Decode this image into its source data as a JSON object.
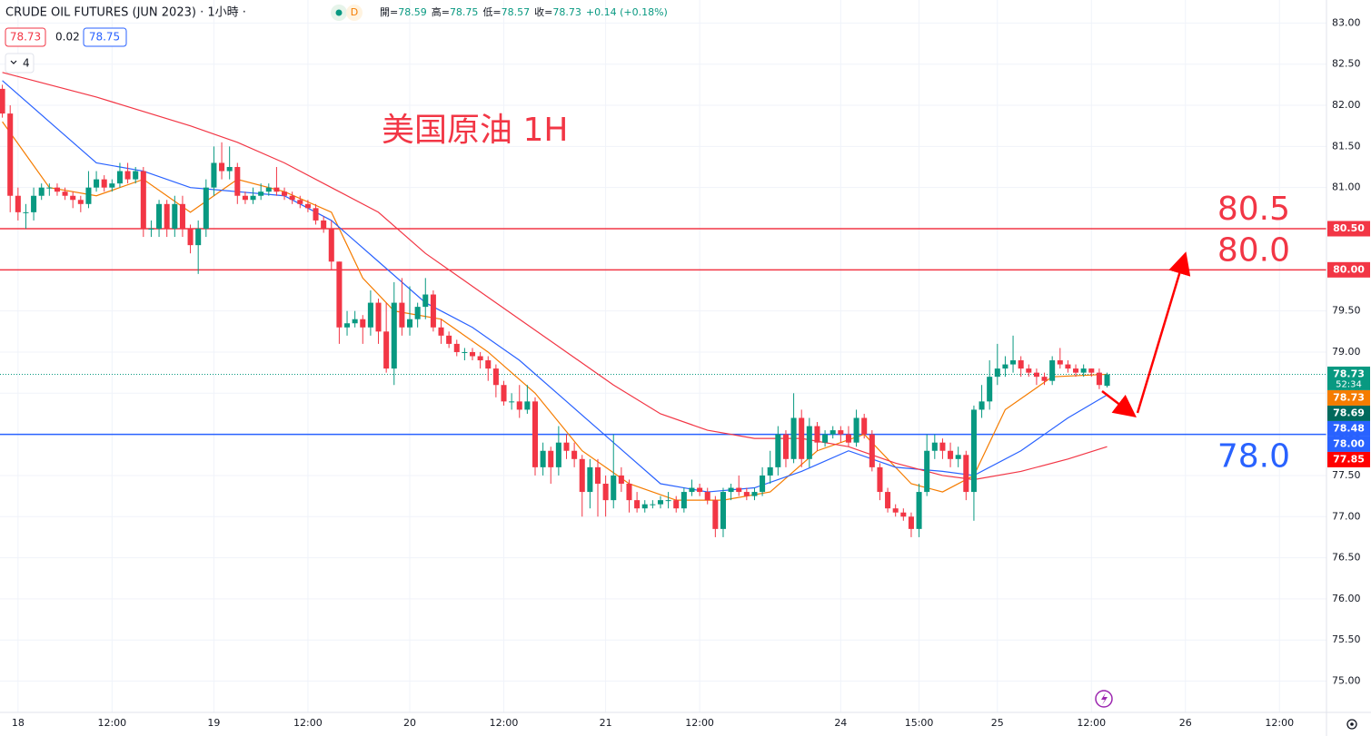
{
  "chart_data": {
    "type": "candlestick",
    "title": "CRUDE OIL FUTURES (JUN 2023) · 1小時 ·",
    "interval_badge": "D",
    "ohlc_legend": [
      {
        "label": "開=",
        "value": 78.59
      },
      {
        "label": "高=",
        "value": 78.75
      },
      {
        "label": "低=",
        "value": 78.57
      },
      {
        "label": "收=",
        "value": 78.73
      }
    ],
    "change_text": "+0.14 (+0.18%)",
    "legend_values": [
      78.73,
      0.02,
      78.75
    ],
    "indicator_count": "4",
    "annotation": "美国原油 1H",
    "up_color": "#089981",
    "down_color": "#f23645",
    "grid": true,
    "xlim": [
      -0.3,
      169
    ],
    "ylim": [
      74.62,
      83.28
    ],
    "xticks": [
      {
        "value": 2,
        "label": "18"
      },
      {
        "value": 14,
        "label": "12:00"
      },
      {
        "value": 27,
        "label": "19"
      },
      {
        "value": 39,
        "label": "12:00"
      },
      {
        "value": 52,
        "label": "20"
      },
      {
        "value": 64,
        "label": "12:00"
      },
      {
        "value": 77,
        "label": "21"
      },
      {
        "value": 89,
        "label": "12:00"
      },
      {
        "value": 107,
        "label": "24"
      },
      {
        "value": 117,
        "label": "15:00"
      },
      {
        "value": 127,
        "label": "25"
      },
      {
        "value": 139,
        "label": "12:00"
      },
      {
        "value": 151,
        "label": "26"
      },
      {
        "value": 163,
        "label": "12:00"
      }
    ],
    "yticks": [
      {
        "value": 75,
        "label": "75.00"
      },
      {
        "value": 75.5,
        "label": "75.50"
      },
      {
        "value": 76,
        "label": "76.00"
      },
      {
        "value": 76.5,
        "label": "76.50"
      },
      {
        "value": 77,
        "label": "77.00"
      },
      {
        "value": 77.5,
        "label": "77.50"
      },
      {
        "value": 78,
        "label": "78.00"
      },
      {
        "value": 78.5,
        "label": "78.50"
      },
      {
        "value": 79,
        "label": "79.00"
      },
      {
        "value": 79.5,
        "label": "79.50"
      },
      {
        "value": 80,
        "label": "80.00"
      },
      {
        "value": 80.5,
        "label": "80.50"
      },
      {
        "value": 81,
        "label": "81.00"
      },
      {
        "value": 81.5,
        "label": "81.50"
      },
      {
        "value": 82,
        "label": "82.00"
      },
      {
        "value": 82.5,
        "label": "82.50"
      },
      {
        "value": 83,
        "label": "83.00"
      }
    ],
    "x": [
      0,
      1,
      2,
      3,
      4,
      5,
      6,
      7,
      8,
      9,
      10,
      11,
      12,
      13,
      14,
      15,
      16,
      17,
      18,
      19,
      20,
      21,
      22,
      23,
      24,
      25,
      26,
      27,
      28,
      29,
      30,
      31,
      32,
      33,
      34,
      35,
      36,
      37,
      38,
      39,
      40,
      41,
      42,
      43,
      44,
      45,
      46,
      47,
      48,
      49,
      50,
      51,
      52,
      53,
      54,
      55,
      56,
      57,
      58,
      59,
      60,
      61,
      62,
      63,
      64,
      65,
      66,
      67,
      68,
      69,
      70,
      71,
      72,
      73,
      74,
      75,
      76,
      77,
      78,
      79,
      80,
      81,
      82,
      83,
      84,
      85,
      86,
      87,
      88,
      89,
      90,
      91,
      92,
      93,
      94,
      95,
      96,
      97,
      98,
      99,
      100,
      101,
      102,
      103,
      104,
      105,
      106,
      107,
      108,
      109,
      110,
      111,
      112,
      113,
      114,
      115,
      116,
      117,
      118,
      119,
      120,
      121,
      122,
      123,
      124,
      125,
      126,
      127,
      128,
      129,
      130,
      131,
      132,
      133,
      134,
      135,
      136,
      137,
      138,
      139,
      140,
      141
    ],
    "open": [
      82.2,
      81.9,
      80.9,
      80.7,
      80.7,
      80.9,
      81.0,
      81.0,
      80.95,
      80.9,
      80.85,
      80.8,
      81.0,
      81.1,
      81.0,
      81.05,
      81.2,
      81.1,
      81.2,
      80.5,
      80.5,
      80.8,
      80.5,
      80.8,
      80.5,
      80.3,
      80.5,
      81.0,
      81.3,
      81.2,
      81.25,
      80.9,
      80.85,
      80.9,
      80.95,
      81.0,
      80.95,
      80.9,
      80.85,
      80.8,
      80.75,
      80.6,
      80.5,
      80.1,
      79.3,
      79.35,
      79.4,
      79.3,
      79.6,
      79.25,
      78.8,
      79.6,
      79.3,
      79.4,
      79.55,
      79.7,
      79.3,
      79.2,
      79.1,
      79.0,
      79.0,
      78.95,
      78.9,
      78.8,
      78.6,
      78.4,
      78.4,
      78.3,
      78.4,
      77.6,
      77.8,
      77.6,
      77.9,
      77.8,
      77.7,
      77.3,
      77.6,
      77.4,
      77.2,
      77.5,
      77.4,
      77.2,
      77.1,
      77.15,
      77.15,
      77.2,
      77.2,
      77.1,
      77.3,
      77.35,
      77.3,
      77.2,
      76.85,
      77.3,
      77.35,
      77.3,
      77.25,
      77.3,
      77.5,
      77.6,
      78.0,
      77.7,
      78.2,
      77.7,
      78.1,
      77.9,
      78.0,
      78.05,
      78.0,
      77.9,
      78.2,
      78.0,
      77.6,
      77.3,
      77.1,
      77.05,
      77.0,
      76.85,
      77.3,
      77.8,
      77.9,
      77.8,
      77.7,
      77.75,
      77.3,
      78.3,
      78.4,
      78.7,
      78.8,
      78.85,
      78.9,
      78.8,
      78.75,
      78.7,
      78.65,
      78.9,
      78.85,
      78.8,
      78.75,
      78.8,
      78.75,
      78.59
    ],
    "high": [
      82.25,
      82.0,
      81.0,
      80.8,
      81.0,
      81.05,
      81.05,
      81.05,
      81.0,
      80.95,
      80.9,
      81.2,
      81.2,
      81.15,
      81.1,
      81.3,
      81.3,
      81.25,
      81.25,
      80.6,
      80.85,
      80.85,
      80.9,
      80.9,
      80.55,
      80.6,
      81.1,
      81.5,
      81.55,
      81.5,
      81.3,
      80.95,
      81.0,
      81.05,
      81.05,
      81.25,
      81.0,
      80.95,
      80.9,
      80.85,
      80.8,
      80.65,
      80.6,
      80.1,
      79.5,
      79.5,
      79.45,
      79.75,
      79.65,
      79.6,
      79.85,
      79.9,
      79.8,
      79.6,
      79.9,
      79.75,
      79.4,
      79.25,
      79.15,
      79.05,
      79.05,
      79.0,
      78.95,
      78.85,
      78.65,
      78.5,
      78.6,
      78.6,
      78.45,
      77.9,
      77.85,
      78.1,
      78.0,
      77.9,
      77.75,
      77.7,
      77.7,
      77.5,
      78.0,
      77.6,
      77.45,
      77.3,
      77.2,
      77.2,
      77.25,
      77.3,
      77.25,
      77.35,
      77.45,
      77.4,
      77.35,
      77.25,
      77.35,
      77.4,
      77.5,
      77.35,
      77.35,
      77.6,
      77.8,
      78.1,
      78.05,
      78.5,
      78.3,
      78.2,
      78.15,
      78.05,
      78.1,
      78.1,
      78.1,
      78.3,
      78.25,
      78.05,
      77.65,
      77.35,
      77.15,
      77.1,
      77.05,
      77.4,
      78.0,
      78.0,
      77.95,
      77.9,
      77.85,
      77.8,
      78.35,
      78.6,
      78.9,
      79.1,
      78.95,
      79.2,
      78.95,
      78.85,
      78.8,
      78.75,
      78.95,
      79.05,
      78.9,
      78.85,
      78.85,
      78.8,
      78.8,
      78.75
    ],
    "low": [
      81.85,
      80.7,
      80.6,
      80.5,
      80.6,
      80.85,
      80.9,
      80.9,
      80.85,
      80.75,
      80.7,
      80.75,
      80.95,
      80.95,
      80.95,
      81.0,
      81.05,
      81.05,
      80.4,
      80.4,
      80.4,
      80.4,
      80.4,
      80.4,
      80.2,
      79.95,
      80.4,
      80.9,
      81.1,
      81.1,
      80.8,
      80.8,
      80.8,
      80.85,
      80.9,
      80.9,
      80.85,
      80.8,
      80.75,
      80.7,
      80.55,
      80.45,
      80.0,
      79.1,
      79.2,
      79.3,
      79.1,
      79.2,
      79.1,
      78.75,
      78.6,
      79.2,
      79.2,
      79.3,
      79.4,
      79.25,
      79.1,
      79.05,
      78.95,
      78.9,
      78.9,
      78.8,
      78.65,
      78.45,
      78.35,
      78.3,
      78.2,
      78.25,
      77.5,
      77.5,
      77.4,
      77.5,
      77.7,
      77.6,
      77.0,
      77.1,
      77.0,
      77.0,
      77.1,
      77.3,
      77.05,
      77.05,
      77.05,
      77.1,
      77.1,
      77.1,
      77.05,
      77.05,
      77.25,
      77.25,
      77.15,
      76.75,
      76.75,
      77.2,
      77.25,
      77.2,
      77.2,
      77.25,
      77.4,
      77.5,
      77.6,
      77.65,
      77.6,
      77.6,
      77.8,
      77.85,
      77.95,
      77.9,
      77.85,
      77.85,
      77.95,
      77.55,
      77.2,
      77.05,
      77.0,
      76.95,
      76.75,
      76.75,
      77.25,
      77.7,
      77.7,
      77.6,
      77.6,
      77.2,
      76.95,
      78.2,
      78.3,
      78.6,
      78.7,
      78.75,
      78.7,
      78.7,
      78.6,
      78.6,
      78.6,
      78.8,
      78.75,
      78.7,
      78.7,
      78.7,
      78.55,
      78.57
    ],
    "close": [
      81.9,
      80.9,
      80.7,
      80.7,
      80.9,
      81.0,
      81.0,
      80.95,
      80.9,
      80.85,
      80.8,
      81.0,
      81.1,
      81.0,
      81.05,
      81.2,
      81.1,
      81.2,
      80.5,
      80.5,
      80.8,
      80.5,
      80.8,
      80.5,
      80.3,
      80.5,
      81.0,
      81.3,
      81.2,
      81.25,
      80.9,
      80.85,
      80.9,
      80.95,
      81.0,
      80.95,
      80.9,
      80.85,
      80.8,
      80.75,
      80.6,
      80.5,
      80.1,
      79.3,
      79.35,
      79.4,
      79.3,
      79.6,
      79.25,
      78.8,
      79.6,
      79.3,
      79.4,
      79.55,
      79.7,
      79.3,
      79.2,
      79.1,
      79.0,
      79.0,
      78.95,
      78.9,
      78.8,
      78.6,
      78.4,
      78.4,
      78.3,
      78.4,
      77.6,
      77.8,
      77.6,
      77.9,
      77.8,
      77.7,
      77.3,
      77.6,
      77.4,
      77.2,
      77.5,
      77.4,
      77.2,
      77.1,
      77.15,
      77.15,
      77.2,
      77.2,
      77.1,
      77.3,
      77.35,
      77.3,
      77.2,
      76.85,
      77.3,
      77.35,
      77.3,
      77.25,
      77.3,
      77.5,
      77.6,
      78.0,
      77.7,
      78.2,
      77.7,
      78.1,
      77.9,
      78.0,
      78.05,
      78.0,
      77.9,
      78.2,
      78.0,
      77.6,
      77.3,
      77.1,
      77.05,
      77.0,
      76.85,
      77.3,
      77.8,
      77.9,
      77.8,
      77.7,
      77.75,
      77.3,
      78.3,
      78.4,
      78.7,
      78.8,
      78.85,
      78.9,
      78.8,
      78.75,
      78.7,
      78.65,
      78.9,
      78.85,
      78.8,
      78.75,
      78.8,
      78.75,
      78.6,
      78.73
    ],
    "moving_averages": [
      {
        "color": "#f57c00",
        "x": [
          0,
          6,
          12,
          18,
          24,
          30,
          36,
          42,
          46,
          50,
          56,
          62,
          68,
          74,
          80,
          86,
          92,
          98,
          104,
          110,
          116,
          120,
          124,
          128,
          134,
          141
        ],
        "values": [
          81.8,
          81.0,
          80.9,
          81.1,
          80.7,
          81.1,
          80.95,
          80.7,
          79.9,
          79.5,
          79.4,
          79.0,
          78.5,
          77.8,
          77.4,
          77.2,
          77.2,
          77.3,
          77.8,
          78.0,
          77.4,
          77.3,
          77.5,
          78.3,
          78.7,
          78.73
        ]
      },
      {
        "color": "#2962ff",
        "x": [
          0,
          6,
          12,
          18,
          24,
          30,
          36,
          42,
          48,
          54,
          60,
          66,
          72,
          78,
          84,
          90,
          96,
          102,
          108,
          114,
          120,
          124,
          130,
          136,
          141
        ],
        "values": [
          82.3,
          81.8,
          81.3,
          81.2,
          81.0,
          80.95,
          80.9,
          80.6,
          80.1,
          79.6,
          79.3,
          78.9,
          78.4,
          77.9,
          77.4,
          77.3,
          77.35,
          77.55,
          77.8,
          77.6,
          77.55,
          77.5,
          77.8,
          78.2,
          78.48
        ]
      },
      {
        "color": "#f23645",
        "x": [
          0,
          12,
          24,
          30,
          36,
          42,
          48,
          54,
          60,
          66,
          72,
          78,
          84,
          90,
          96,
          102,
          108,
          114,
          120,
          124,
          130,
          136,
          141
        ],
        "values": [
          82.4,
          82.1,
          81.75,
          81.55,
          81.3,
          81.0,
          80.7,
          80.2,
          79.8,
          79.4,
          79.0,
          78.6,
          78.25,
          78.05,
          77.95,
          77.95,
          77.85,
          77.65,
          77.5,
          77.45,
          77.55,
          77.7,
          77.85
        ]
      }
    ],
    "horizontal_lines": [
      {
        "value": 80.5,
        "label": "80.5",
        "color": "#f23645",
        "label_side": "above"
      },
      {
        "value": 80.0,
        "label": "80.0",
        "color": "#f23645",
        "label_side": "above"
      },
      {
        "value": 78.0,
        "label": "78.0",
        "color": "#2962ff",
        "label_side": "below"
      }
    ],
    "price_tags": [
      {
        "value": 80.5,
        "label": "80.50",
        "color": "#f23645"
      },
      {
        "value": 80.0,
        "label": "80.00",
        "color": "#f23645"
      },
      {
        "value": 78.73,
        "label": "78.73",
        "color": "#089981",
        "countdown": "52:34"
      },
      {
        "value": 78.73,
        "label": "78.73",
        "color": "#f57c00"
      },
      {
        "value": 78.69,
        "label": "78.69",
        "color": "#00695c"
      },
      {
        "value": 78.48,
        "label": "78.48",
        "color": "#2962ff"
      },
      {
        "value": 78.0,
        "label": "78.00",
        "color": "#2962ff"
      },
      {
        "value": 77.85,
        "label": "77.85",
        "color": "#f00"
      }
    ]
  }
}
